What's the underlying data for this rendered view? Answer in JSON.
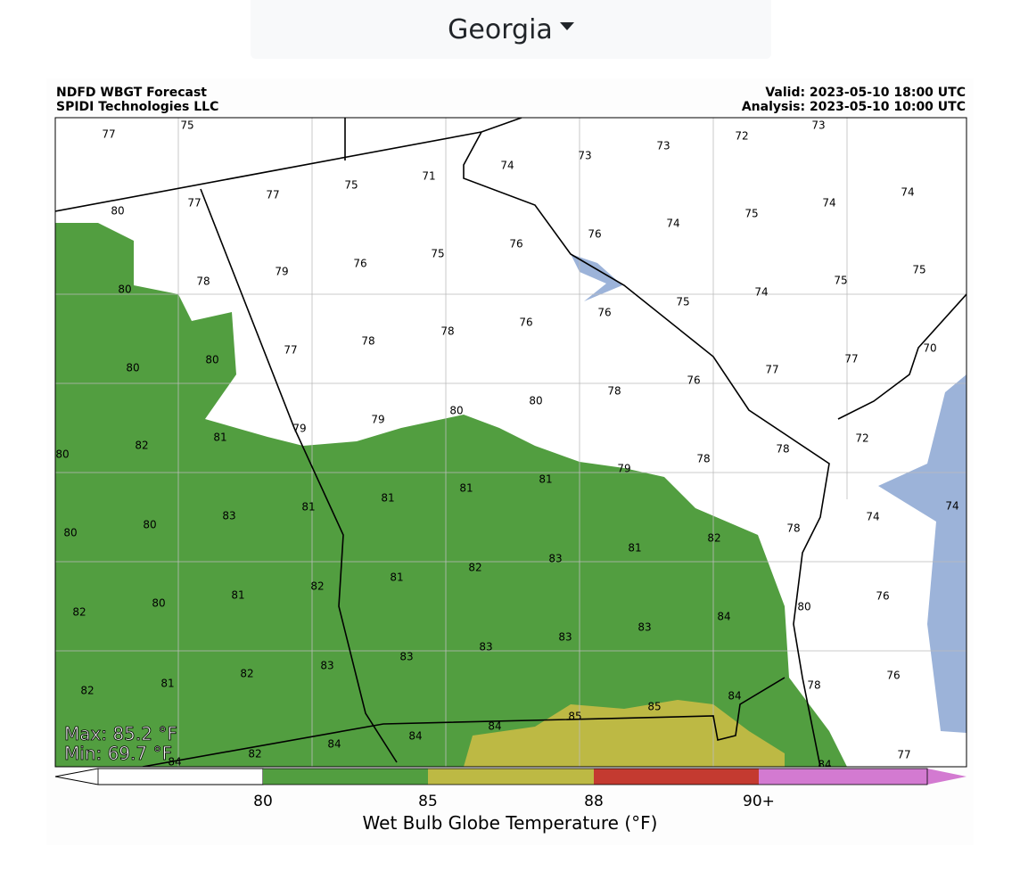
{
  "dropdown": {
    "label": "Georgia"
  },
  "map": {
    "title_left": [
      "NDFD WBGT Forecast",
      "SPIDI Technologies LLC"
    ],
    "title_right": [
      "Valid: 2023-05-10 18:00 UTC",
      "Analysis: 2023-05-10 10:00 UTC"
    ],
    "stations": [
      77,
      75,
      73,
      72,
      73,
      73,
      74,
      71,
      75,
      77,
      77,
      74,
      74,
      75,
      74,
      76,
      76,
      75,
      76,
      79,
      78,
      80,
      80,
      75,
      75,
      74,
      75,
      76,
      76,
      78,
      78,
      77,
      80,
      80,
      77,
      77,
      76,
      78,
      80,
      80,
      79,
      79,
      81,
      82,
      80,
      70,
      72,
      78,
      78,
      79,
      81,
      81,
      81,
      81,
      83,
      80,
      80,
      74,
      74,
      78,
      82,
      81,
      83,
      82,
      81,
      82,
      81,
      80,
      82,
      76,
      80,
      84,
      83,
      83,
      83,
      83,
      83,
      82,
      81,
      82,
      76,
      78,
      84,
      85,
      85,
      84,
      84,
      84,
      82,
      84,
      84,
      77
    ],
    "max_label": "Max: 85.2 °F",
    "min_label": "Min: 69.7 °F",
    "colorbar": {
      "ticks": [
        "80",
        "85",
        "88",
        "90+"
      ],
      "label": "Wet Bulb Globe Temperature (°F)"
    }
  }
}
